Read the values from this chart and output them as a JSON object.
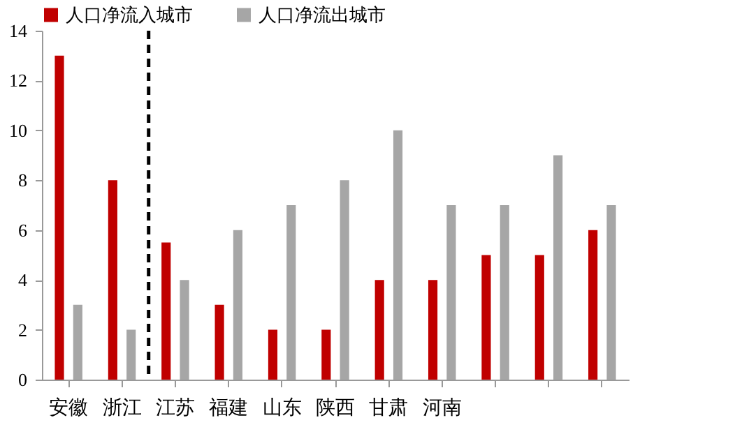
{
  "chart_data": {
    "type": "bar",
    "categories": [
      "安徽",
      "浙江",
      "江苏",
      "福建",
      "山东",
      "陕西",
      "甘肃",
      "河南",
      null,
      null,
      null
    ],
    "series": [
      {
        "name": "人口净流入城市",
        "color": "#c00000",
        "values": [
          13,
          8,
          5.5,
          3,
          2,
          2,
          4,
          4,
          5,
          5,
          6
        ]
      },
      {
        "name": "人口净流出城市",
        "color": "#a6a6a6",
        "values": [
          3,
          2,
          4,
          6,
          7,
          8,
          10,
          7,
          7,
          9,
          7
        ]
      }
    ],
    "ylim": [
      0,
      14
    ],
    "yticks": [
      0,
      2,
      4,
      6,
      8,
      10,
      12,
      14
    ],
    "grid": false,
    "legend": "top"
  }
}
